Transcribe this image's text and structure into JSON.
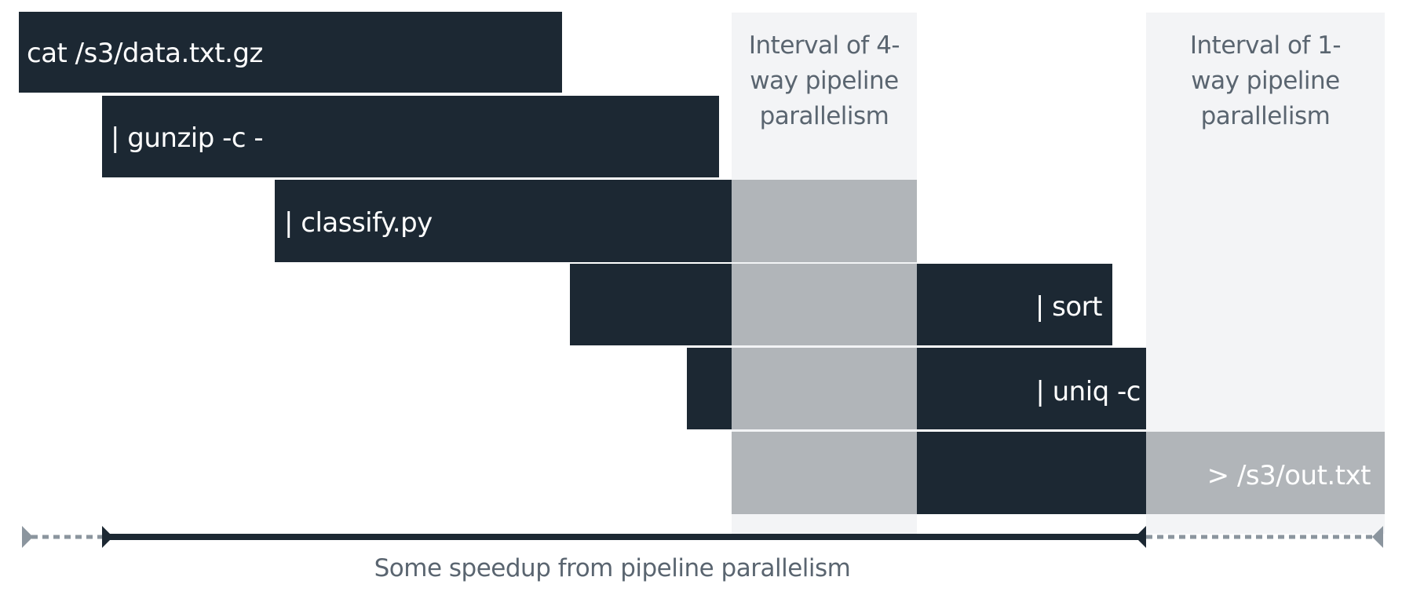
{
  "stages": [
    {
      "id": "cat",
      "label": "cat /s3/data.txt.gz"
    },
    {
      "id": "gunzip",
      "label": "| gunzip -c -"
    },
    {
      "id": "classify",
      "label": "| classify.py"
    },
    {
      "id": "sort",
      "label": "| sort"
    },
    {
      "id": "uniq",
      "label": "| uniq -c"
    },
    {
      "id": "out",
      "label": "> /s3/out.txt"
    }
  ],
  "intervals": {
    "four_way": {
      "line1": "Interval of 4-",
      "line2": "way pipeline",
      "line3": "parallelism"
    },
    "one_way": {
      "line1": "Interval of 1-",
      "line2": "way pipeline",
      "line3": "parallelism"
    }
  },
  "caption": "Some speedup from pipeline parallelism",
  "colors": {
    "active_bar": "#1c2833",
    "waiting_bar": "#b1b5b9",
    "interval_band": "#f3f4f6",
    "caption_text": "#5a6570"
  }
}
